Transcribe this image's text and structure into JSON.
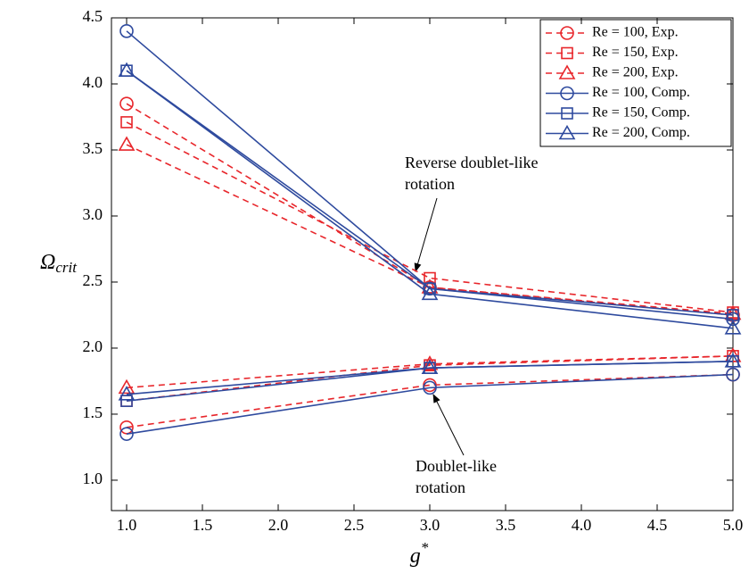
{
  "chart_data": {
    "type": "line",
    "xlabel": {
      "symbol": "g",
      "superscript": "*"
    },
    "ylabel": {
      "symbol": "Ω",
      "subscript": "crit"
    },
    "x": [
      1,
      3,
      5
    ],
    "xlim": [
      0.9,
      5.0
    ],
    "ylim": [
      0.77,
      4.5
    ],
    "xticks": [
      {
        "value": 1,
        "label": "1.0"
      },
      {
        "value": 1.5,
        "label": "1.5"
      },
      {
        "value": 2,
        "label": "2.0"
      },
      {
        "value": 2.5,
        "label": "2.5"
      },
      {
        "value": 3,
        "label": "3.0"
      },
      {
        "value": 3.5,
        "label": "3.5"
      },
      {
        "value": 4,
        "label": "4.0"
      },
      {
        "value": 4.5,
        "label": "4.5"
      },
      {
        "value": 5,
        "label": "5.0"
      }
    ],
    "yticks": [
      {
        "value": 1,
        "label": "1.0"
      },
      {
        "value": 1.5,
        "label": "1.5"
      },
      {
        "value": 2,
        "label": "2.0"
      },
      {
        "value": 2.5,
        "label": "2.5"
      },
      {
        "value": 3,
        "label": "3.0"
      },
      {
        "value": 3.5,
        "label": "3.5"
      },
      {
        "value": 4,
        "label": "4.0"
      },
      {
        "value": 4.5,
        "label": "4.5"
      }
    ],
    "legend": "upper right",
    "series": [
      {
        "name": "Re = 100, Exp.",
        "color": "#e8262b",
        "dashed": true,
        "marker": "circle",
        "values": [
          3.85,
          2.46,
          2.25
        ],
        "values_lower": [
          1.4,
          1.72,
          1.8
        ]
      },
      {
        "name": "Re = 150, Exp.",
        "color": "#e8262b",
        "dashed": true,
        "marker": "square",
        "values": [
          3.71,
          2.53,
          2.27
        ],
        "values_lower": [
          1.6,
          1.87,
          1.94
        ]
      },
      {
        "name": "Re = 200, Exp.",
        "color": "#e8262b",
        "dashed": true,
        "marker": "triangle",
        "values": [
          3.54,
          2.46,
          2.26
        ],
        "values_lower": [
          1.7,
          1.88,
          1.94
        ]
      },
      {
        "name": "Re = 100, Comp.",
        "color": "#2e4a9e",
        "dashed": false,
        "marker": "circle",
        "values": [
          4.4,
          2.45,
          2.22
        ],
        "values_lower": [
          1.35,
          1.7,
          1.8
        ]
      },
      {
        "name": "Re = 150, Comp.",
        "color": "#2e4a9e",
        "dashed": false,
        "marker": "square",
        "values": [
          4.1,
          2.45,
          2.25
        ],
        "values_lower": [
          1.6,
          1.85,
          1.9
        ]
      },
      {
        "name": "Re = 200, Comp.",
        "color": "#2e4a9e",
        "dashed": false,
        "marker": "triangle",
        "values": [
          4.1,
          2.41,
          2.15
        ],
        "values_lower": [
          1.65,
          1.85,
          1.9
        ]
      }
    ],
    "annotations": [
      [
        "Reverse doublet-like",
        "rotation"
      ],
      [
        "Doublet-like",
        "rotation"
      ]
    ]
  }
}
